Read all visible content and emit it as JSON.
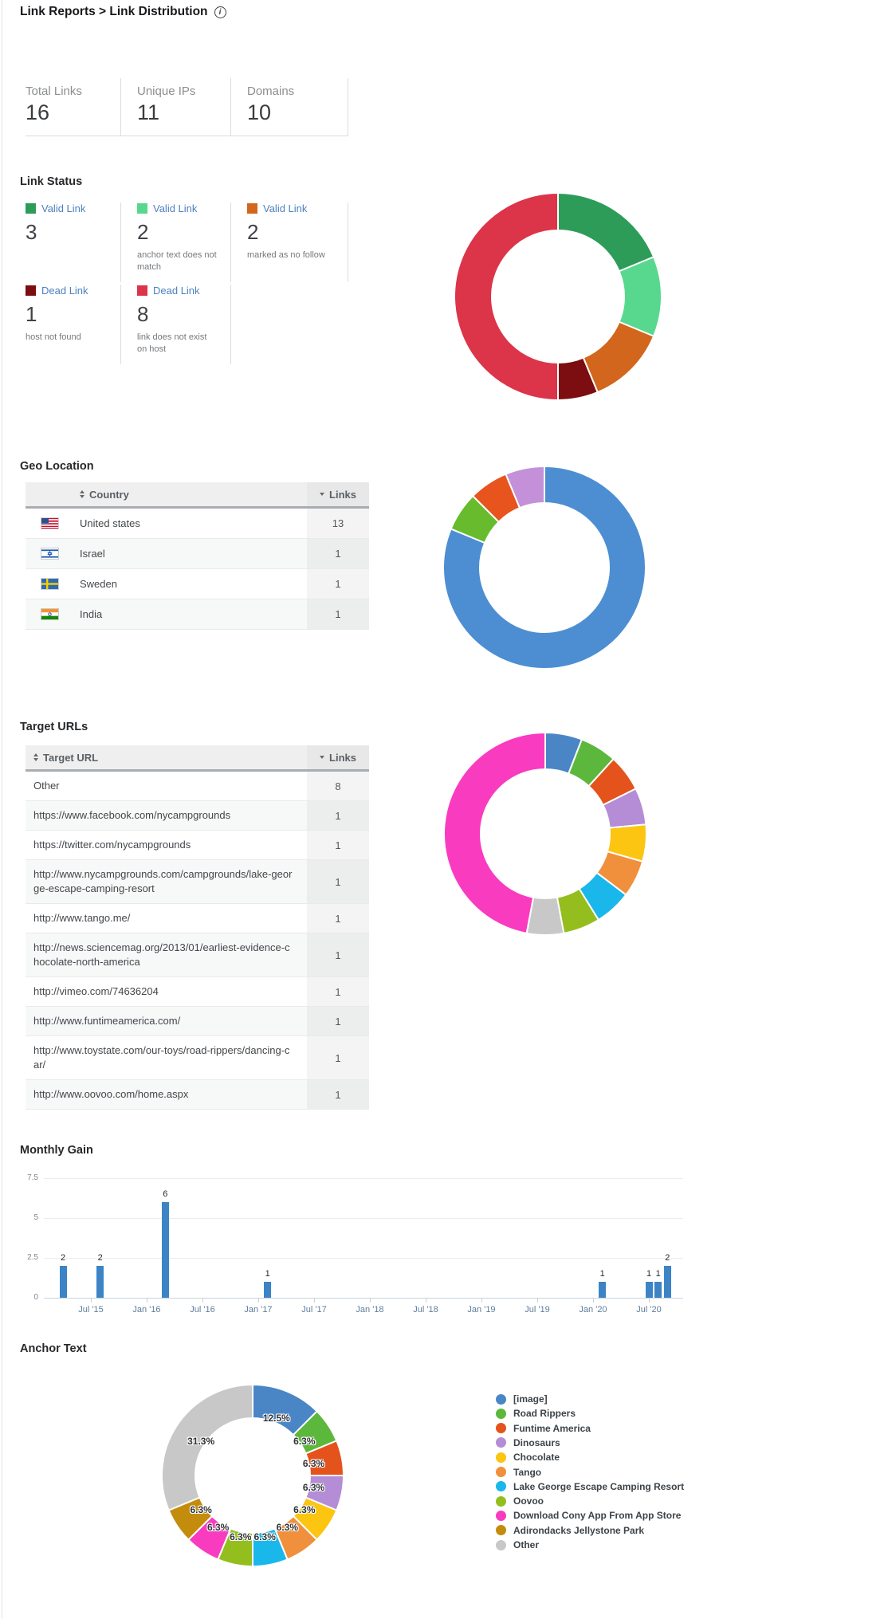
{
  "page": {
    "title": "Link Reports > Link Distribution"
  },
  "icons": {
    "info": "i"
  },
  "stats": [
    {
      "label": "Total Links",
      "value": "16"
    },
    {
      "label": "Unique IPs",
      "value": "11"
    },
    {
      "label": "Domains",
      "value": "10"
    }
  ],
  "link_status": {
    "title": "Link Status",
    "rows": [
      [
        {
          "label": "Valid Link",
          "value": "3",
          "desc": "",
          "color": "#2d9c59"
        },
        {
          "label": "Valid Link",
          "value": "2",
          "desc": "anchor text does not match",
          "color": "#58d88e"
        },
        {
          "label": "Valid Link",
          "value": "2",
          "desc": "marked as no follow",
          "color": "#d2661c"
        }
      ],
      [
        {
          "label": "Dead Link",
          "value": "1",
          "desc": "host not found",
          "color": "#7c0d10"
        },
        {
          "label": "Dead Link",
          "value": "8",
          "desc": "link does not exist on host",
          "color": "#dc3449"
        }
      ]
    ],
    "chart_data": {
      "type": "donut",
      "slices": [
        {
          "label": "Valid Link",
          "value": 3,
          "color": "#2d9c59"
        },
        {
          "label": "Valid Link - anchor text does not match",
          "value": 2,
          "color": "#58d88e"
        },
        {
          "label": "Valid Link - marked as no follow",
          "value": 2,
          "color": "#d2661c"
        },
        {
          "label": "Dead Link - host not found",
          "value": 1,
          "color": "#7c0d10"
        },
        {
          "label": "Dead Link - link does not exist on host",
          "value": 8,
          "color": "#dc3449"
        }
      ]
    }
  },
  "geo": {
    "title": "Geo Location",
    "table": {
      "country_header": "Country",
      "links_header": "Links"
    },
    "rows": [
      {
        "flag": "us",
        "country": "United states",
        "links": "13"
      },
      {
        "flag": "il",
        "country": "Israel",
        "links": "1"
      },
      {
        "flag": "se",
        "country": "Sweden",
        "links": "1"
      },
      {
        "flag": "in",
        "country": "India",
        "links": "1"
      }
    ],
    "chart_data": {
      "type": "donut",
      "slices": [
        {
          "label": "United states",
          "value": 13,
          "color": "#4d8ed2"
        },
        {
          "label": "Israel",
          "value": 1,
          "color": "#67bb2d"
        },
        {
          "label": "Sweden",
          "value": 1,
          "color": "#e8541e"
        },
        {
          "label": "India",
          "value": 1,
          "color": "#c491d9"
        }
      ]
    }
  },
  "target_urls": {
    "title": "Target URLs",
    "table": {
      "url_header": "Target URL",
      "links_header": "Links"
    },
    "rows": [
      {
        "url": "Other",
        "links": "8"
      },
      {
        "url": "https://www.facebook.com/nycampgrounds",
        "links": "1"
      },
      {
        "url": "https://twitter.com/nycampgrounds",
        "links": "1"
      },
      {
        "url": "http://www.nycampgrounds.com/campgrounds/lake-george-escape-camping-resort",
        "links": "1"
      },
      {
        "url": "http://www.tango.me/",
        "links": "1"
      },
      {
        "url": "http://news.sciencemag.org/2013/01/earliest-evidence-chocolate-north-america",
        "links": "1"
      },
      {
        "url": "http://vimeo.com/74636204",
        "links": "1"
      },
      {
        "url": "http://www.funtimeamerica.com/",
        "links": "1"
      },
      {
        "url": "http://www.toystate.com/our-toys/road-rippers/dancing-car/",
        "links": "1"
      },
      {
        "url": "http://www.oovoo.com/home.aspx",
        "links": "1"
      }
    ],
    "chart_data": {
      "type": "donut",
      "slices": [
        {
          "label": "https://www.facebook.com/nycampgrounds",
          "value": 1,
          "color": "#4a86c6"
        },
        {
          "label": "https://twitter.com/nycampgrounds",
          "value": 1,
          "color": "#5cb83c"
        },
        {
          "label": "http://www.nycampgrounds.com/campgrounds/lake-george-escape-camping-resort",
          "value": 1,
          "color": "#e5531c"
        },
        {
          "label": "http://www.tango.me/",
          "value": 1,
          "color": "#b58cd6"
        },
        {
          "label": "http://news.sciencemag.org/2013/01/earliest-evidence-chocolate-north-america",
          "value": 1,
          "color": "#fbc511"
        },
        {
          "label": "http://vimeo.com/74636204",
          "value": 1,
          "color": "#f0903c"
        },
        {
          "label": "http://www.funtimeamerica.com/",
          "value": 1,
          "color": "#1ab7ea"
        },
        {
          "label": "http://www.toystate.com/our-toys/road-rippers/dancing-car/",
          "value": 1,
          "color": "#94be1e"
        },
        {
          "label": "http://www.oovoo.com/home.aspx",
          "value": 1,
          "color": "#c8c8c8"
        },
        {
          "label": "Other",
          "value": 8,
          "color": "#f93bc0"
        }
      ]
    }
  },
  "monthly_gain": {
    "title": "Monthly Gain",
    "chart_data": {
      "type": "bar",
      "bar_color": "#3d84c6",
      "bars": [
        {
          "month": "Apr '15",
          "value": 2
        },
        {
          "month": "Aug '15",
          "value": 2
        },
        {
          "month": "Mar '16",
          "value": 6
        },
        {
          "month": "Feb '17",
          "value": 1
        },
        {
          "month": "Feb '20",
          "value": 1
        },
        {
          "month": "Jul '20",
          "value": 1
        },
        {
          "month": "Aug '20",
          "value": 1
        },
        {
          "month": "Sep '20",
          "value": 2
        }
      ],
      "x_ticks": [
        "Jul '15",
        "Jan '16",
        "Jul '16",
        "Jan '17",
        "Jul '17",
        "Jan '18",
        "Jul '18",
        "Jan '19",
        "Jul '19",
        "Jan '20",
        "Jul '20"
      ],
      "y_ticks": [
        0,
        2.5,
        5,
        7.5
      ],
      "ylim": [
        0,
        7.5
      ]
    }
  },
  "anchor_text": {
    "title": "Anchor Text",
    "chart_data": {
      "type": "donut",
      "slices": [
        {
          "label": "[image]",
          "value": 12.5,
          "pct": "12.5%",
          "color": "#4a86c6"
        },
        {
          "label": "Road Rippers",
          "value": 6.25,
          "pct": "6.3%",
          "color": "#5cb83c"
        },
        {
          "label": "Funtime America",
          "value": 6.25,
          "pct": "6.3%",
          "color": "#e5531c"
        },
        {
          "label": "Dinosaurs",
          "value": 6.25,
          "pct": "6.3%",
          "color": "#b58cd6"
        },
        {
          "label": "Chocolate",
          "value": 6.25,
          "pct": "6.3%",
          "color": "#fbc511"
        },
        {
          "label": "Tango",
          "value": 6.25,
          "pct": "6.3%",
          "color": "#f0903c"
        },
        {
          "label": "Lake George Escape Camping Resort",
          "value": 6.25,
          "pct": "6.3%",
          "color": "#1ab7ea"
        },
        {
          "label": "Oovoo",
          "value": 6.25,
          "pct": "6.3%",
          "color": "#94be1e"
        },
        {
          "label": "Download Cony App From App Store",
          "value": 6.25,
          "pct": "6.3%",
          "color": "#f93bc0"
        },
        {
          "label": "Adirondacks Jellystone Park",
          "value": 6.25,
          "pct": "6.3%",
          "color": "#c48c0c"
        },
        {
          "label": "Other",
          "value": 31.25,
          "pct": "31.3%",
          "color": "#c8c8c8"
        }
      ]
    }
  }
}
